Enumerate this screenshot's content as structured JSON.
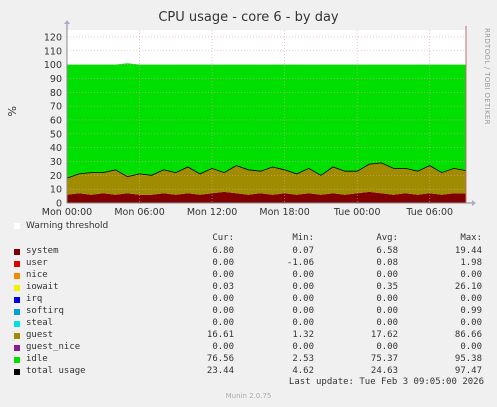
{
  "title": "CPU usage - core 6 - by day",
  "side_label": "RRDTOOL / TOBI OETIKER",
  "footer": "Munin 2.0.75",
  "last_update": "Last update: Tue Feb  3 09:05:00 2026",
  "warning": {
    "label": "Warning threshold",
    "color": "#ffffff"
  },
  "legend_headers": {
    "cur": "Cur:",
    "min": "Min:",
    "avg": "Avg:",
    "max": "Max:"
  },
  "legend": [
    {
      "name": "system",
      "color": "#7f0000",
      "cur": "6.80",
      "min": "0.07",
      "avg": "6.58",
      "max": "19.44"
    },
    {
      "name": "user",
      "color": "#e00000",
      "cur": "0.00",
      "min": "-1.06",
      "avg": "0.08",
      "max": "1.98"
    },
    {
      "name": "nice",
      "color": "#f08c00",
      "cur": "0.00",
      "min": "0.00",
      "avg": "0.00",
      "max": "0.00"
    },
    {
      "name": "iowait",
      "color": "#f0f000",
      "cur": "0.03",
      "min": "0.00",
      "avg": "0.35",
      "max": "26.10"
    },
    {
      "name": "irq",
      "color": "#0000e0",
      "cur": "0.00",
      "min": "0.00",
      "avg": "0.00",
      "max": "0.00"
    },
    {
      "name": "softirq",
      "color": "#00a0e0",
      "cur": "0.00",
      "min": "0.00",
      "avg": "0.00",
      "max": "0.99"
    },
    {
      "name": "steal",
      "color": "#00e0e0",
      "cur": "0.00",
      "min": "0.00",
      "avg": "0.00",
      "max": "0.00"
    },
    {
      "name": "guest",
      "color": "#a08c00",
      "cur": "16.61",
      "min": "1.32",
      "avg": "17.62",
      "max": "86.66"
    },
    {
      "name": "guest_nice",
      "color": "#8c1e8c",
      "cur": "0.00",
      "min": "0.00",
      "avg": "0.00",
      "max": "0.00"
    },
    {
      "name": "idle",
      "color": "#00e000",
      "cur": "76.56",
      "min": "2.53",
      "avg": "75.37",
      "max": "95.38"
    },
    {
      "name": "total usage",
      "color": "#000000",
      "cur": "23.44",
      "min": "4.62",
      "avg": "24.63",
      "max": "97.47"
    }
  ],
  "chart_data": {
    "type": "area",
    "title": "CPU usage - core 6 - by day",
    "ylabel": "%",
    "ylim": [
      0,
      125
    ],
    "yticks": [
      0,
      10,
      20,
      30,
      40,
      50,
      60,
      70,
      80,
      90,
      100,
      110,
      120
    ],
    "xlim": [
      0,
      33
    ],
    "xticks": [
      {
        "x": 0,
        "label": "Mon 00:00"
      },
      {
        "x": 6,
        "label": "Mon 06:00"
      },
      {
        "x": 12,
        "label": "Mon 12:00"
      },
      {
        "x": 18,
        "label": "Mon 18:00"
      },
      {
        "x": 24,
        "label": "Tue 00:00"
      },
      {
        "x": 30,
        "label": "Tue 06:00"
      }
    ],
    "grid": true,
    "x": [
      0,
      1,
      2,
      3,
      4,
      5,
      6,
      7,
      8,
      9,
      10,
      11,
      12,
      13,
      14,
      15,
      16,
      17,
      18,
      19,
      20,
      21,
      22,
      23,
      24,
      25,
      26,
      27,
      28,
      29,
      30,
      31,
      32,
      33
    ],
    "series": [
      {
        "name": "system",
        "color": "#7f0000",
        "values": [
          6,
          7,
          6,
          7,
          6,
          7,
          6,
          6,
          7,
          6,
          7,
          6,
          7,
          8,
          7,
          6,
          7,
          6,
          7,
          6,
          7,
          6,
          7,
          6,
          7,
          8,
          7,
          6,
          7,
          6,
          7,
          6,
          7,
          6.8
        ]
      },
      {
        "name": "guest",
        "color": "#a08c00",
        "values": [
          12,
          14,
          16,
          15,
          18,
          13,
          15,
          14,
          17,
          16,
          19,
          15,
          18,
          14,
          20,
          18,
          16,
          20,
          17,
          15,
          18,
          14,
          19,
          17,
          16,
          20,
          22,
          19,
          18,
          17,
          20,
          16,
          18,
          16.6
        ]
      },
      {
        "name": "idle",
        "color": "#00e000",
        "values": [
          82,
          79,
          78,
          78,
          76,
          81,
          79,
          80,
          76,
          78,
          74,
          79,
          75,
          78,
          73,
          76,
          77,
          74,
          76,
          79,
          75,
          80,
          74,
          77,
          77,
          72,
          71,
          75,
          75,
          77,
          73,
          78,
          75,
          76.6
        ]
      },
      {
        "name": "total usage",
        "color": "#000000",
        "values": [
          18,
          21,
          22,
          22,
          24,
          19,
          21,
          20,
          24,
          22,
          26,
          21,
          25,
          22,
          27,
          24,
          23,
          26,
          24,
          21,
          25,
          20,
          26,
          23,
          23,
          28,
          29,
          25,
          25,
          23,
          27,
          22,
          25,
          23.4
        ]
      }
    ]
  }
}
